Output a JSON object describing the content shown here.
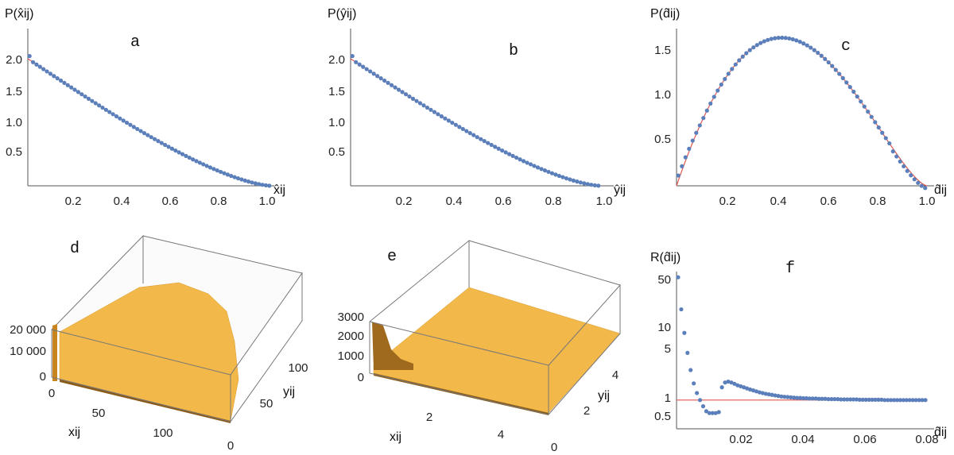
{
  "chart_data": [
    {
      "panel": "a",
      "type": "scatter",
      "ylabel": "P(x̂ij)",
      "xlabel": "x̂ij",
      "xlim": [
        0,
        1
      ],
      "ylim": [
        0,
        2.4
      ],
      "xticks": [
        "0.2",
        "0.4",
        "0.6",
        "0.8",
        "1.0"
      ],
      "yticks": [
        "0.5",
        "1.0",
        "1.5",
        "2.0"
      ],
      "points_color": "#5b7fba",
      "fit_color": "#e0574f",
      "curve": "triangular"
    },
    {
      "panel": "b",
      "type": "scatter",
      "ylabel": "P(ŷij)",
      "xlabel": "ŷij",
      "xlim": [
        0,
        1
      ],
      "ylim": [
        0,
        2.4
      ],
      "xticks": [
        "0.2",
        "0.4",
        "0.6",
        "0.8",
        "1.0"
      ],
      "yticks": [
        "0.5",
        "1.0",
        "1.5",
        "2.0"
      ],
      "points_color": "#5b7fba",
      "fit_color": "#e0574f",
      "curve": "triangular"
    },
    {
      "panel": "c",
      "type": "scatter",
      "ylabel": "P(d̂ij)",
      "xlabel": "d̂ij",
      "xlim": [
        0,
        1
      ],
      "ylim": [
        0,
        1.7
      ],
      "xticks": [
        "0.2",
        "0.4",
        "0.6",
        "0.8",
        "1.0"
      ],
      "yticks": [
        "0.5",
        "1.0",
        "1.5"
      ],
      "points_color": "#5b7fba",
      "fit_color": "#e0574f",
      "curve": "distance"
    },
    {
      "panel": "d",
      "type": "bar3d",
      "xlabel": "xij",
      "ylabel": "yij",
      "zticks": [
        "0",
        "10 000",
        "20 000"
      ],
      "xticks": [
        "0",
        "50",
        "100"
      ],
      "yticks": [
        "0",
        "50",
        "100"
      ],
      "bar_color": "#f3b84a"
    },
    {
      "panel": "e",
      "type": "bar3d",
      "xlabel": "xij",
      "ylabel": "yij",
      "zticks": [
        "0",
        "1000",
        "2000",
        "3000"
      ],
      "xticks": [
        "2",
        "4"
      ],
      "yticks": [
        "0",
        "2",
        "4"
      ],
      "bar_color": "#f3b84a"
    },
    {
      "panel": "f",
      "type": "scatter",
      "ylabel": "R(d̂ij)",
      "xlabel": "d̂ij",
      "yscale": "log",
      "xlim": [
        0,
        0.08
      ],
      "ylim": [
        0.4,
        60
      ],
      "xticks": [
        "0.02",
        "0.04",
        "0.06",
        "0.08"
      ],
      "yticks": [
        "0.5",
        "1",
        "5",
        "10",
        "50"
      ],
      "reference_line": 1,
      "x": [
        0.0005,
        0.0015,
        0.0025,
        0.0035,
        0.0045,
        0.0055,
        0.0065,
        0.0075,
        0.0085,
        0.0095,
        0.0105,
        0.0115,
        0.0125,
        0.0135,
        0.0145,
        0.0155,
        0.0165,
        0.0175,
        0.0185,
        0.0195,
        0.0205,
        0.0215,
        0.0225,
        0.0235,
        0.0245,
        0.0255,
        0.0265,
        0.0275,
        0.0285,
        0.0295,
        0.0305,
        0.0315,
        0.0325,
        0.0335,
        0.0345,
        0.0355,
        0.0365,
        0.0375,
        0.0385,
        0.0395,
        0.0405,
        0.0415,
        0.0425,
        0.0435,
        0.0445,
        0.0455,
        0.0465,
        0.0475,
        0.0485,
        0.0495,
        0.0505,
        0.0515,
        0.0525,
        0.0535,
        0.0545,
        0.0555,
        0.0565,
        0.0575,
        0.0585,
        0.0595,
        0.0605,
        0.0615,
        0.0625,
        0.0635,
        0.0645,
        0.0655,
        0.0665,
        0.0675,
        0.0685,
        0.0695,
        0.0705,
        0.0715,
        0.0725,
        0.0735,
        0.0745,
        0.0755,
        0.0765,
        0.0775,
        0.0785,
        0.0795
      ],
      "values": [
        50,
        18,
        8.5,
        4.5,
        2.6,
        1.7,
        1.25,
        1.0,
        0.82,
        0.7,
        0.66,
        0.66,
        0.66,
        0.68,
        1.5,
        1.75,
        1.8,
        1.75,
        1.68,
        1.6,
        1.55,
        1.5,
        1.45,
        1.4,
        1.36,
        1.32,
        1.28,
        1.25,
        1.22,
        1.2,
        1.18,
        1.16,
        1.14,
        1.12,
        1.11,
        1.1,
        1.09,
        1.08,
        1.07,
        1.07,
        1.06,
        1.06,
        1.05,
        1.05,
        1.05,
        1.04,
        1.04,
        1.04,
        1.03,
        1.03,
        1.03,
        1.03,
        1.02,
        1.02,
        1.02,
        1.02,
        1.02,
        1.02,
        1.01,
        1.01,
        1.01,
        1.01,
        1.01,
        1.01,
        1.01,
        1.01,
        1.0,
        1.0,
        1.0,
        1.0,
        1.0,
        1.0,
        1.0,
        1.0,
        1.0,
        1.0,
        1.0,
        1.0,
        1.0,
        1.0
      ],
      "points_color": "#5b7fba",
      "fit_color": "#e0574f"
    }
  ]
}
